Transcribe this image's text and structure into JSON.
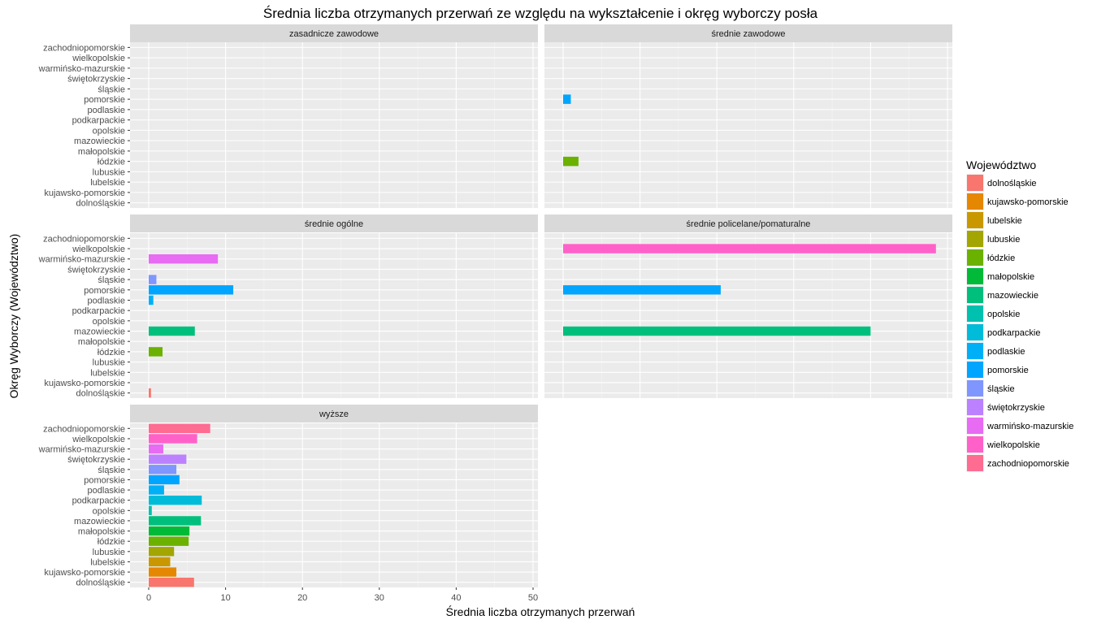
{
  "chart_data": {
    "type": "bar",
    "orientation": "horizontal",
    "title": "Średnia liczba otrzymanych przerwań ze względu na wykształcenie i okręg wyborczy posła",
    "xlabel": "Średnia liczba otrzymanych przerwań",
    "ylabel": "Okręg Wyborczy (Województwo)",
    "xlim": [
      0,
      50
    ],
    "x_ticks": [
      "0",
      "10",
      "20",
      "30",
      "40",
      "50"
    ],
    "grid": true,
    "legend_position": "right",
    "legend_title": "Województwo",
    "categories": [
      "dolnośląskie",
      "kujawsko-pomorskie",
      "lubelskie",
      "lubuskie",
      "łódzkie",
      "małopolskie",
      "mazowieckie",
      "opolskie",
      "podkarpackie",
      "podlaskie",
      "pomorskie",
      "śląskie",
      "świętokrzyskie",
      "warmińsko-mazurskie",
      "wielkopolskie",
      "zachodniopomorskie"
    ],
    "legend_labels": [
      "dolnośląskie",
      "kujawsko-pomorskie",
      "lubelskie",
      "lubuskie",
      "łódzkie",
      "małopolskie",
      "mazowieckie",
      "opolskie",
      "podkarpackie",
      "podlaskie",
      "pomorskie",
      "śląskie",
      "świętokrzyskie",
      "warmińsko-mazurskie",
      "wielkopolskie",
      "zachodniopomorskie"
    ],
    "colors": [
      "#F8766D",
      "#E58700",
      "#C99800",
      "#A3A500",
      "#6BB100",
      "#00BA38",
      "#00BF7D",
      "#00C0AF",
      "#00BCD8",
      "#00B0F6",
      "#00A5FF",
      "#7F96FF",
      "#BC81FF",
      "#E76BF3",
      "#FF61C9",
      "#FF6C91"
    ],
    "panels": [
      {
        "label": "zasadnicze zawodowe",
        "values": {}
      },
      {
        "label": "średnie zawodowe",
        "values": {
          "łódzkie": 2.0,
          "pomorskie": 1.0
        }
      },
      {
        "label": "średnie ogólne",
        "values": {
          "dolnośląskie": 0.3,
          "łódzkie": 1.8,
          "mazowieckie": 6.0,
          "podlaskie": 0.6,
          "pomorskie": 11.0,
          "śląskie": 1.0,
          "warmińsko-mazurskie": 9.0
        }
      },
      {
        "label": "średnie policelane/pomaturalne",
        "values": {
          "mazowieckie": 40.0,
          "pomorskie": 20.5,
          "wielkopolskie": 48.5
        }
      },
      {
        "label": "wyższe",
        "values": {
          "dolnośląskie": 5.9,
          "kujawsko-pomorskie": 3.6,
          "lubelskie": 2.8,
          "lubuskie": 3.3,
          "łódzkie": 5.2,
          "małopolskie": 5.3,
          "mazowieckie": 6.8,
          "opolskie": 0.4,
          "podkarpackie": 6.9,
          "podlaskie": 2.0,
          "pomorskie": 4.0,
          "śląskie": 3.6,
          "świętokrzyskie": 4.9,
          "warmińsko-mazurskie": 1.9,
          "wielkopolskie": 6.3,
          "zachodniopomorskie": 8.0
        }
      }
    ]
  }
}
